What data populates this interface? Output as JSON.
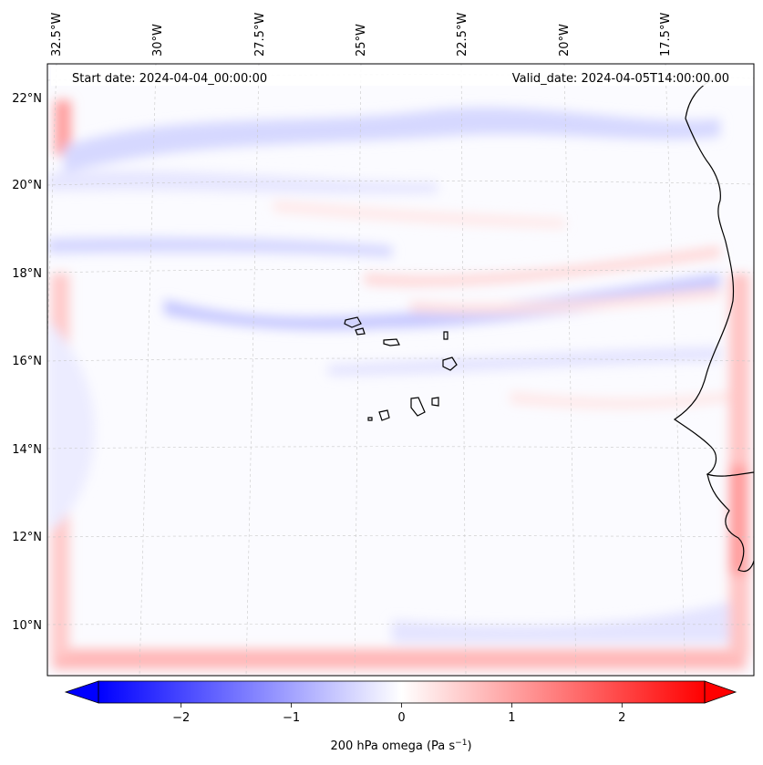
{
  "map": {
    "start_date": "Start date: 2024-04-04_00:00:00",
    "valid_date": "Valid_date: 2024-04-05T14:00:00.00",
    "lon_labels": [
      "32.5°W",
      "30°W",
      "27.5°W",
      "25°W",
      "22.5°W",
      "20°W",
      "17.5°W"
    ],
    "lat_labels": [
      "22°N",
      "20°N",
      "18°N",
      "16°N",
      "14°N",
      "12°N",
      "10°N"
    ],
    "colorbar": {
      "ticks": [
        "−2",
        "−1",
        "0",
        "1",
        "2"
      ],
      "tick_values": [
        -2,
        -1,
        0,
        1,
        2
      ],
      "range": [
        -2.75,
        2.75
      ],
      "label_main": "200 hPa omega (Pa s",
      "label_sup": "−1",
      "label_end": ")",
      "colormap": "bwr",
      "negative_color": "#0000ff",
      "positive_color": "#ff0000"
    },
    "grid": "dashed",
    "coastline_color": "#000000",
    "features": [
      "cape-verde-islands",
      "west-african-coastline"
    ]
  }
}
